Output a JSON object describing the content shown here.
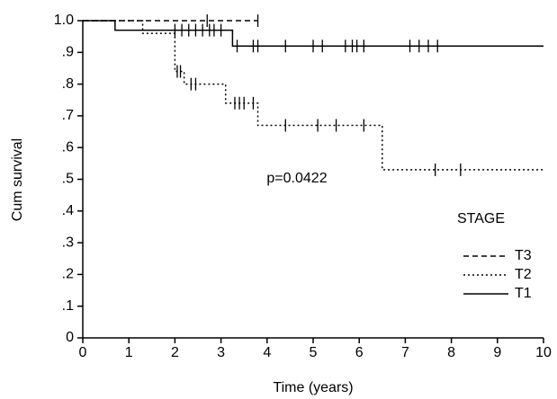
{
  "chart_data": {
    "type": "line",
    "drawstyle": "steps-post",
    "xlabel": "Time (years)",
    "ylabel": "Cum survival",
    "xlim": [
      0,
      10
    ],
    "ylim": [
      0,
      1
    ],
    "xticks": [
      0,
      1,
      2,
      3,
      4,
      5,
      6,
      7,
      8,
      9,
      10
    ],
    "yticks": [
      0,
      {
        "value": 0.1,
        "label": ".1"
      },
      {
        "value": 0.2,
        "label": ".2"
      },
      {
        "value": 0.3,
        "label": ".3"
      },
      {
        "value": 0.4,
        "label": ".4"
      },
      {
        "value": 0.5,
        "label": ".5"
      },
      {
        "value": 0.6,
        "label": ".6"
      },
      {
        "value": 0.7,
        "label": ".7"
      },
      {
        "value": 0.8,
        "label": ".8"
      },
      {
        "value": 0.9,
        "label": ".9"
      },
      {
        "value": 1,
        "label": "1.0"
      }
    ],
    "annotation": "p=0.0422",
    "legend_title": "STAGE",
    "legend_position": "lower right",
    "series": [
      {
        "name": "T3",
        "color": "#000000",
        "dash": "6,4",
        "x": [
          0,
          3.8
        ],
        "values": [
          1,
          1
        ],
        "censored": {
          "x": [
            2.7,
            3.8
          ],
          "values": [
            1,
            1
          ]
        }
      },
      {
        "name": "T2",
        "color": "#000000",
        "dash": "2,3",
        "x": [
          0,
          1.3,
          2.0,
          2.2,
          3.1,
          3.8,
          6.5,
          10
        ],
        "values": [
          1,
          0.96,
          0.84,
          0.8,
          0.74,
          0.67,
          0.53,
          0.53
        ],
        "censored": {
          "x": [
            2.05,
            2.12,
            2.35,
            2.45,
            3.3,
            3.4,
            3.5,
            3.7,
            4.4,
            5.1,
            5.5,
            6.1,
            7.65,
            8.2
          ],
          "values": [
            0.84,
            0.84,
            0.8,
            0.8,
            0.74,
            0.74,
            0.74,
            0.74,
            0.67,
            0.67,
            0.67,
            0.67,
            0.53,
            0.53
          ]
        }
      },
      {
        "name": "T1",
        "color": "#000000",
        "dash": "",
        "x": [
          0,
          0.7,
          3.25,
          10
        ],
        "values": [
          1,
          0.97,
          0.92,
          0.92
        ],
        "censored": {
          "x": [
            2.0,
            2.15,
            2.3,
            2.45,
            2.6,
            2.75,
            2.85,
            3.0,
            3.35,
            3.7,
            3.8,
            4.4,
            5.0,
            5.2,
            5.7,
            5.85,
            5.95,
            6.1,
            7.1,
            7.3,
            7.5,
            7.7
          ],
          "values": [
            0.97,
            0.97,
            0.97,
            0.97,
            0.97,
            0.97,
            0.97,
            0.97,
            0.92,
            0.92,
            0.92,
            0.92,
            0.92,
            0.92,
            0.92,
            0.92,
            0.92,
            0.92,
            0.92,
            0.92,
            0.92,
            0.92
          ]
        }
      }
    ]
  }
}
